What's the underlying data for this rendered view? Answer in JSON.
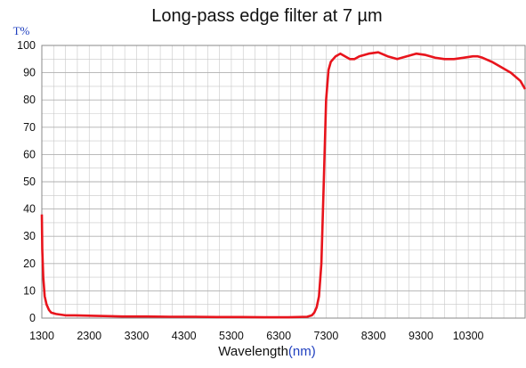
{
  "chart_data": {
    "type": "line",
    "title": "Long-pass edge filter at 7 µm",
    "ylabel": "T%",
    "xlabel": "Wavelength",
    "xunit": "(nm)",
    "xlim": [
      1300,
      11500
    ],
    "ylim": [
      0,
      100
    ],
    "xticks": [
      1300,
      2300,
      3300,
      4300,
      5300,
      6300,
      7300,
      8300,
      9300,
      10300
    ],
    "yticks": [
      0,
      10,
      20,
      30,
      40,
      50,
      60,
      70,
      80,
      90,
      100
    ],
    "grid": true,
    "colors": {
      "series": "#e8141c",
      "axis_label": "#1f3fbf",
      "grid": "#c8c8c8"
    },
    "series": [
      {
        "x": [
          1300,
          1310,
          1330,
          1360,
          1400,
          1450,
          1500,
          1600,
          1800,
          2000,
          2500,
          3000,
          3500,
          4000,
          4500,
          5000,
          5500,
          6000,
          6500,
          6900,
          7000,
          7050,
          7100,
          7150,
          7200,
          7250,
          7300,
          7350,
          7400,
          7500,
          7600,
          7700,
          7800,
          7900,
          8000,
          8200,
          8400,
          8600,
          8800,
          9000,
          9200,
          9400,
          9600,
          9800,
          10000,
          10200,
          10400,
          10500,
          10600,
          10800,
          11000,
          11200,
          11400,
          11500
        ],
        "y": [
          38,
          25,
          15,
          8,
          5,
          3,
          2,
          1.5,
          1,
          1,
          0.8,
          0.6,
          0.6,
          0.5,
          0.5,
          0.4,
          0.4,
          0.3,
          0.3,
          0.5,
          1,
          2,
          4,
          8,
          20,
          50,
          80,
          91,
          94,
          96,
          97,
          96,
          95,
          95,
          96,
          97,
          97.5,
          96,
          95,
          96,
          97,
          96.5,
          95.5,
          95,
          95,
          95.5,
          96,
          96,
          95.5,
          94,
          92,
          90,
          87,
          84
        ]
      }
    ]
  }
}
